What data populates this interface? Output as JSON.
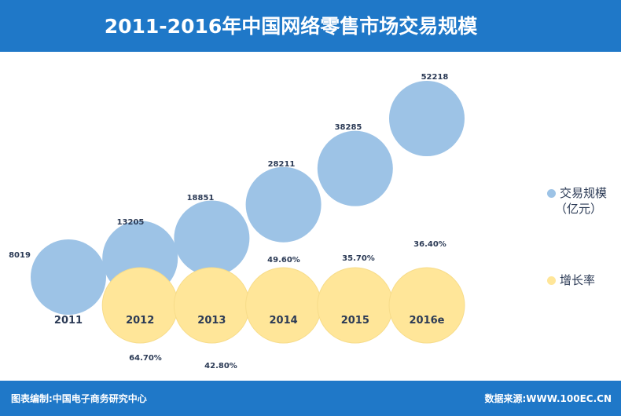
{
  "header": {
    "title": "2011-2016年中国网络零售市场交易规模"
  },
  "footer": {
    "left": "图表编制:中国电子商务研究中心",
    "right": "数据来源:WWW.100EC.CN"
  },
  "colors": {
    "header_bg": "#1f78c8",
    "bubble_volume": "#9dc3e6",
    "bubble_growth": "#ffe699",
    "text": "#2b3a55"
  },
  "legend": {
    "volume_label": "交易规模",
    "volume_unit": "（亿元）",
    "growth_label": "增长率"
  },
  "chart_data": {
    "type": "bubble",
    "categories": [
      "2011",
      "2012",
      "2013",
      "2014",
      "2015",
      "2016e"
    ],
    "series": [
      {
        "name": "交易规模（亿元）",
        "values": [
          8019,
          13205,
          18851,
          28211,
          38285,
          52218
        ],
        "labels": [
          "8019",
          "13205",
          "18851",
          "28211",
          "38285",
          "52218"
        ]
      },
      {
        "name": "增长率",
        "values": [
          null,
          64.7,
          42.8,
          49.6,
          35.7,
          36.4
        ],
        "labels": [
          "",
          "64.70%",
          "42.80%",
          "49.60%",
          "35.70%",
          "36.40%"
        ]
      }
    ]
  }
}
